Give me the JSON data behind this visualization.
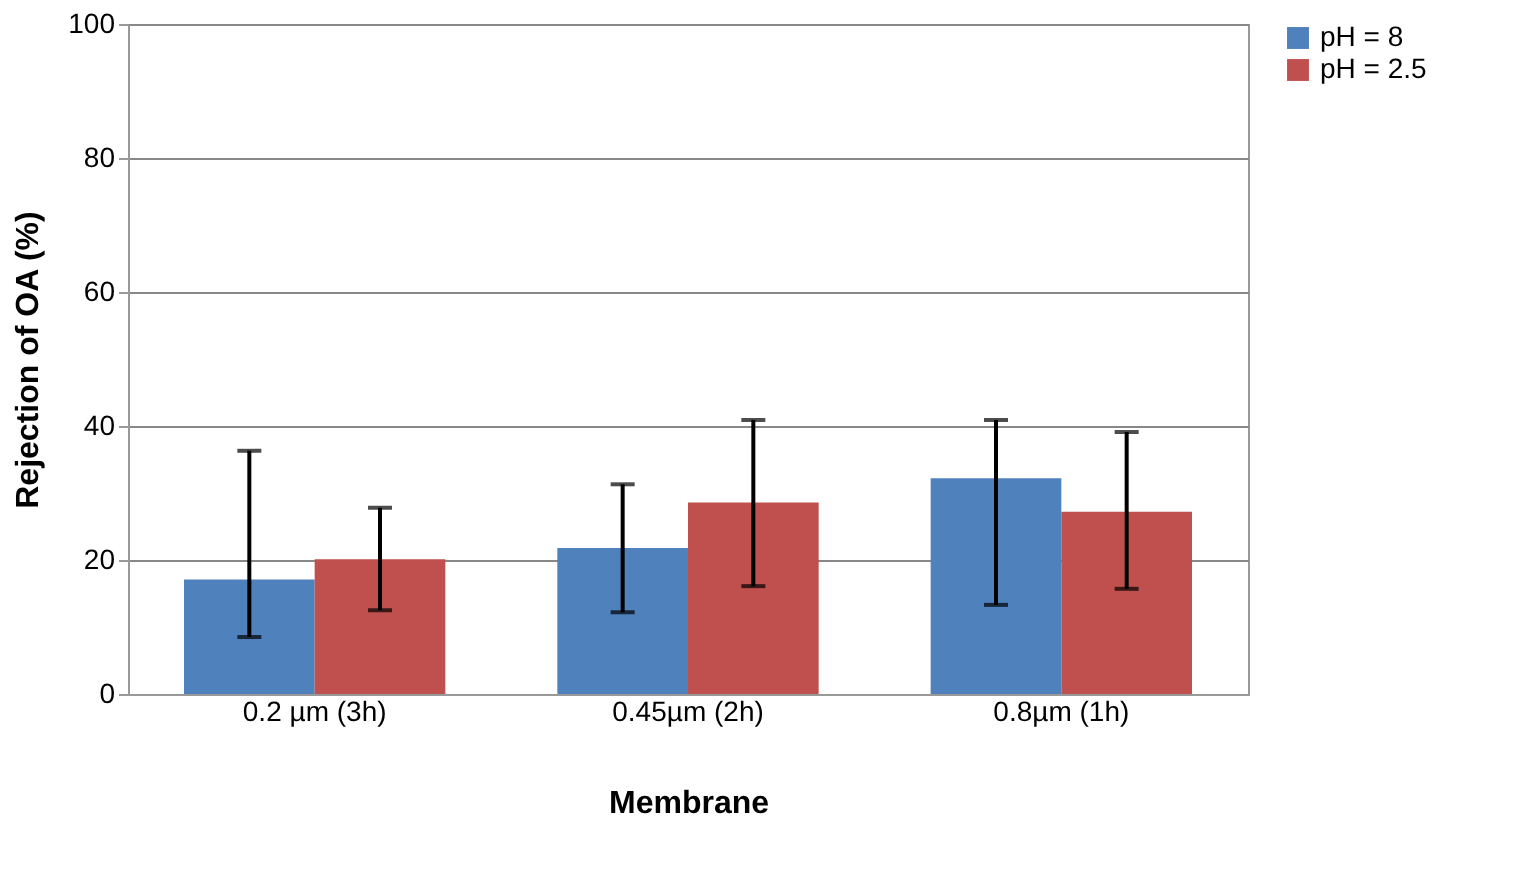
{
  "chart_data": {
    "type": "bar",
    "xlabel": "Membrane",
    "ylabel": "Rejection of OA (%)",
    "categories": [
      "0.2 µm (3h)",
      "0.45µm (2h)",
      "0.8µm (1h)"
    ],
    "series": [
      {
        "name": "pH = 8",
        "color": "#4f81bd",
        "values": [
          17.1,
          21.8,
          32.2
        ],
        "errors": [
          [
            8.5,
            36.3
          ],
          [
            12.2,
            31.3
          ],
          [
            13.3,
            40.9
          ]
        ]
      },
      {
        "name": "pH = 2.5",
        "color": "#c0504d",
        "values": [
          20.1,
          28.6,
          27.2
        ],
        "errors": [
          [
            12.5,
            27.8
          ],
          [
            16.1,
            40.9
          ],
          [
            15.7,
            39.1
          ]
        ]
      }
    ],
    "ylim": [
      0,
      100
    ],
    "yticks": [
      0,
      20,
      40,
      60,
      80,
      100
    ],
    "grid": "y",
    "legend": "right"
  }
}
